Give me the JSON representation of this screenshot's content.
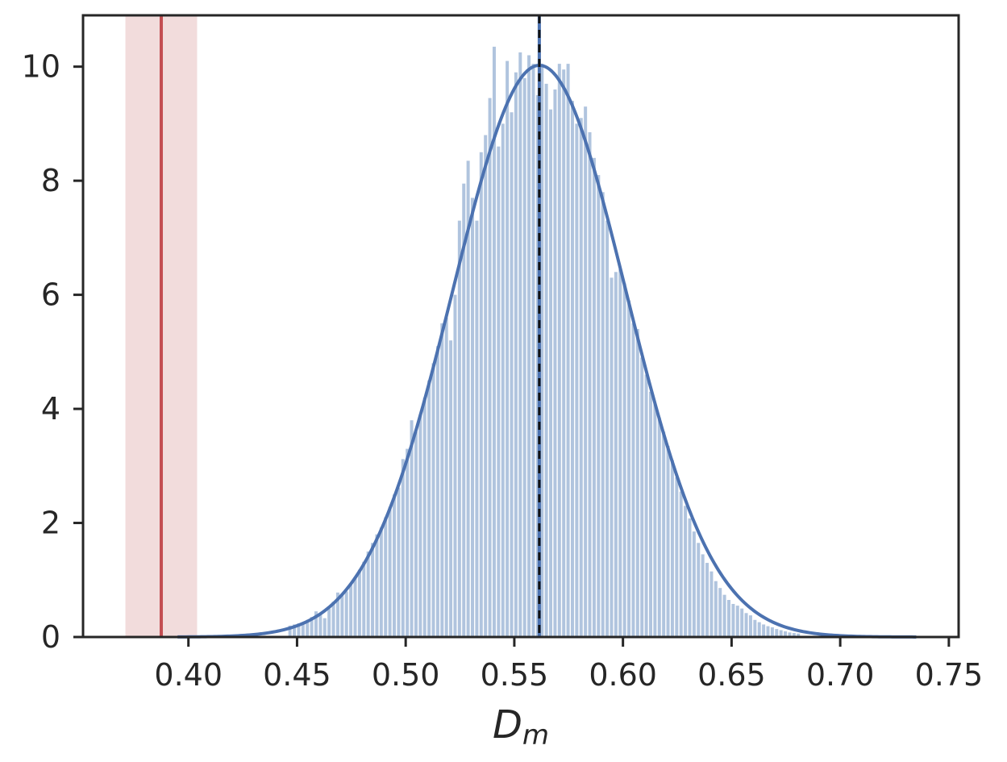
{
  "chart_data": {
    "type": "bar",
    "xlabel_main": "D",
    "xlabel_sub": "m",
    "ylabel": "",
    "xlim": [
      0.3515,
      0.7545
    ],
    "ylim": [
      0,
      10.9
    ],
    "grid": false,
    "x_ticks": [
      0.4,
      0.45,
      0.5,
      0.55,
      0.6,
      0.65,
      0.7,
      0.75
    ],
    "x_tick_labels": [
      "0.40",
      "0.45",
      "0.50",
      "0.55",
      "0.60",
      "0.65",
      "0.70",
      "0.75"
    ],
    "y_ticks": [
      0,
      2,
      4,
      6,
      8,
      10
    ],
    "y_tick_labels": [
      "0",
      "2",
      "4",
      "6",
      "8",
      "10"
    ],
    "histogram": {
      "color": "#b0c4de",
      "bin_width": 0.002,
      "bins": [
        [
          0.446,
          0.2
        ],
        [
          0.448,
          0.22
        ],
        [
          0.45,
          0.24
        ],
        [
          0.452,
          0.26
        ],
        [
          0.454,
          0.29
        ],
        [
          0.456,
          0.35
        ],
        [
          0.458,
          0.45
        ],
        [
          0.46,
          0.42
        ],
        [
          0.462,
          0.33
        ],
        [
          0.464,
          0.5
        ],
        [
          0.466,
          0.62
        ],
        [
          0.468,
          0.78
        ],
        [
          0.47,
          0.75
        ],
        [
          0.472,
          0.8
        ],
        [
          0.474,
          0.92
        ],
        [
          0.476,
          1.05
        ],
        [
          0.478,
          1.18
        ],
        [
          0.48,
          1.32
        ],
        [
          0.482,
          1.5
        ],
        [
          0.484,
          1.65
        ],
        [
          0.486,
          1.8
        ],
        [
          0.488,
          1.92
        ],
        [
          0.49,
          2.1
        ],
        [
          0.492,
          2.28
        ],
        [
          0.494,
          2.5
        ],
        [
          0.496,
          2.62
        ],
        [
          0.498,
          3.12
        ],
        [
          0.5,
          3.3
        ],
        [
          0.502,
          3.8
        ],
        [
          0.504,
          3.6
        ],
        [
          0.506,
          3.9
        ],
        [
          0.508,
          4.2
        ],
        [
          0.51,
          4.5
        ],
        [
          0.512,
          4.8
        ],
        [
          0.514,
          5.1
        ],
        [
          0.516,
          5.5
        ],
        [
          0.518,
          5.6
        ],
        [
          0.52,
          5.2
        ],
        [
          0.522,
          6.0
        ],
        [
          0.524,
          7.3
        ],
        [
          0.526,
          7.95
        ],
        [
          0.528,
          8.35
        ],
        [
          0.53,
          7.7
        ],
        [
          0.532,
          7.3
        ],
        [
          0.534,
          8.5
        ],
        [
          0.536,
          8.8
        ],
        [
          0.538,
          9.45
        ],
        [
          0.54,
          10.35
        ],
        [
          0.542,
          8.6
        ],
        [
          0.544,
          9.0
        ],
        [
          0.546,
          10.1
        ],
        [
          0.548,
          9.2
        ],
        [
          0.55,
          9.9
        ],
        [
          0.552,
          10.25
        ],
        [
          0.554,
          9.8
        ],
        [
          0.556,
          10.2
        ],
        [
          0.558,
          10.05
        ],
        [
          0.56,
          9.5
        ],
        [
          0.562,
          10.05
        ],
        [
          0.564,
          9.7
        ],
        [
          0.566,
          9.25
        ],
        [
          0.568,
          9.6
        ],
        [
          0.57,
          10.05
        ],
        [
          0.572,
          9.95
        ],
        [
          0.574,
          10.05
        ],
        [
          0.576,
          9.4
        ],
        [
          0.578,
          9.0
        ],
        [
          0.58,
          9.1
        ],
        [
          0.582,
          9.3
        ],
        [
          0.584,
          8.85
        ],
        [
          0.586,
          8.4
        ],
        [
          0.588,
          8.1
        ],
        [
          0.59,
          7.8
        ],
        [
          0.592,
          7.3
        ],
        [
          0.594,
          6.3
        ],
        [
          0.596,
          6.4
        ],
        [
          0.598,
          6.45
        ],
        [
          0.6,
          6.2
        ],
        [
          0.602,
          5.9
        ],
        [
          0.604,
          5.5
        ],
        [
          0.606,
          5.4
        ],
        [
          0.608,
          4.9
        ],
        [
          0.61,
          4.6
        ],
        [
          0.612,
          4.3
        ],
        [
          0.614,
          4.1
        ],
        [
          0.616,
          3.85
        ],
        [
          0.618,
          3.6
        ],
        [
          0.62,
          3.35
        ],
        [
          0.622,
          3.1
        ],
        [
          0.624,
          2.8
        ],
        [
          0.626,
          2.55
        ],
        [
          0.628,
          2.3
        ],
        [
          0.63,
          2.08
        ],
        [
          0.632,
          1.85
        ],
        [
          0.634,
          1.65
        ],
        [
          0.636,
          1.45
        ],
        [
          0.638,
          1.3
        ],
        [
          0.64,
          1.15
        ],
        [
          0.642,
          0.98
        ],
        [
          0.644,
          0.86
        ],
        [
          0.646,
          0.74
        ],
        [
          0.648,
          0.65
        ],
        [
          0.65,
          0.58
        ],
        [
          0.652,
          0.55
        ],
        [
          0.654,
          0.5
        ],
        [
          0.656,
          0.42
        ],
        [
          0.658,
          0.38
        ],
        [
          0.66,
          0.3
        ],
        [
          0.662,
          0.26
        ],
        [
          0.664,
          0.22
        ],
        [
          0.666,
          0.19
        ],
        [
          0.668,
          0.17
        ],
        [
          0.67,
          0.14
        ],
        [
          0.672,
          0.12
        ],
        [
          0.674,
          0.1
        ],
        [
          0.676,
          0.08
        ],
        [
          0.678,
          0.07
        ],
        [
          0.68,
          0.06
        ]
      ]
    },
    "fit_curve": {
      "type": "normal-pdf",
      "mean": 0.5615,
      "sd": 0.0398,
      "color": "#4c72b0",
      "x_range": [
        0.395,
        0.735
      ]
    },
    "mean_line": {
      "x": 0.5615,
      "color": "#4c72b0",
      "dash_color": "#111111"
    },
    "observed_line": {
      "x": 0.3875,
      "color": "#c44e52"
    },
    "observed_band": {
      "x_range": [
        0.371,
        0.404
      ],
      "color": "#f2dcdc"
    }
  }
}
